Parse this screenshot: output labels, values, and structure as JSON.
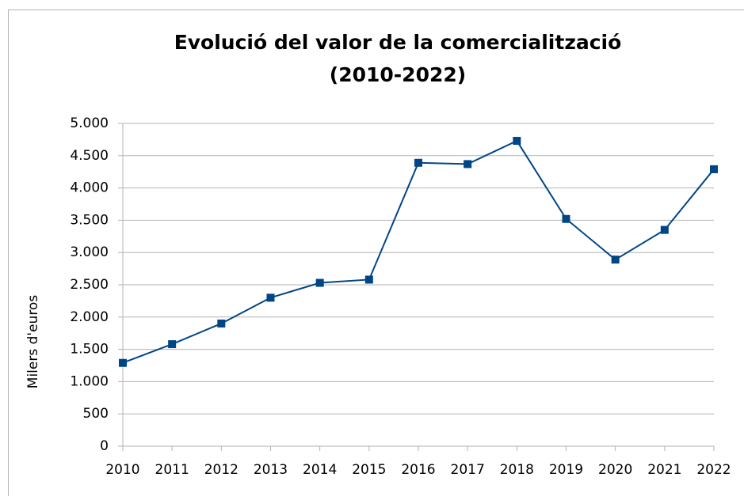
{
  "chart_data": {
    "type": "line",
    "title": [
      "Evolució del valor de la comercialització",
      "(2010-2022)"
    ],
    "y_label": "Milers d'euros",
    "x": [
      2010,
      2011,
      2012,
      2013,
      2014,
      2015,
      2016,
      2017,
      2018,
      2019,
      2020,
      2021,
      2022
    ],
    "xlim": [
      2010,
      2022
    ],
    "xticks": [
      2010,
      2011,
      2012,
      2013,
      2014,
      2015,
      2016,
      2017,
      2018,
      2019,
      2020,
      2021,
      2022
    ],
    "series": [
      {
        "name": "Milers d'euros",
        "color": "#004586",
        "values": [
          1290,
          1580,
          1900,
          2300,
          2530,
          2580,
          4390,
          4370,
          4730,
          3520,
          2890,
          3350,
          4290
        ]
      }
    ],
    "ylim": [
      0,
      5000
    ],
    "yticks": [
      0,
      500,
      {
        "value": 1000,
        "label": "1.000"
      },
      {
        "value": 1500,
        "label": "1.500"
      },
      {
        "value": 2000,
        "label": "2.000"
      },
      {
        "value": 2500,
        "label": "2.500"
      },
      {
        "value": 3000,
        "label": "3.000"
      },
      {
        "value": 3500,
        "label": "3.500"
      },
      {
        "value": 4000,
        "label": "4.000"
      },
      {
        "value": 4500,
        "label": "4.500"
      },
      {
        "value": 5000,
        "label": "5.000"
      }
    ],
    "grid": true
  }
}
